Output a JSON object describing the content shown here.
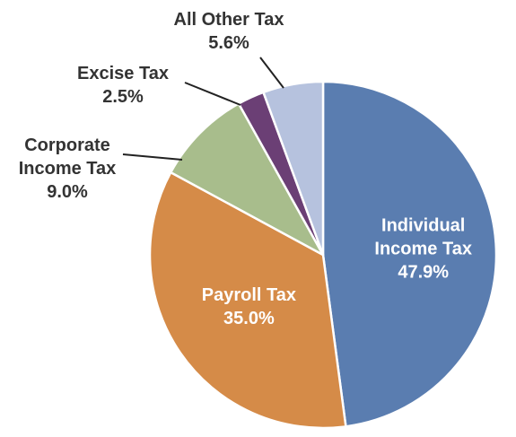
{
  "chart_data": {
    "type": "pie",
    "start": "12 o'clock",
    "direction": "clockwise",
    "slices": [
      {
        "label": [
          "Individual",
          "Income Tax"
        ],
        "pct_text": "47.9%",
        "value": 47.9,
        "color": "#5A7DB0",
        "label_placement": "inside"
      },
      {
        "label": [
          "Payroll Tax"
        ],
        "pct_text": "35.0%",
        "value": 35.0,
        "color": "#D58B48",
        "label_placement": "inside"
      },
      {
        "label": [
          "Corporate",
          "Income Tax"
        ],
        "pct_text": "9.0%",
        "value": 9.0,
        "color": "#A8BD8C",
        "label_placement": "outside"
      },
      {
        "label": [
          "Excise Tax"
        ],
        "pct_text": "2.5%",
        "value": 2.5,
        "color": "#6B3F75",
        "label_placement": "outside"
      },
      {
        "label": [
          "All Other Tax"
        ],
        "pct_text": "5.6%",
        "value": 5.6,
        "color": "#B6C2DE",
        "label_placement": "outside"
      }
    ]
  }
}
